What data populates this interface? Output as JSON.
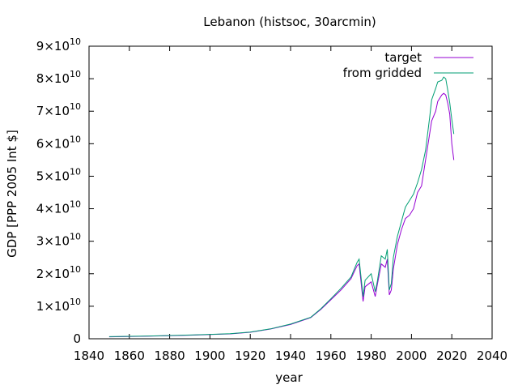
{
  "chart_data": {
    "type": "line",
    "title": "Lebanon (histsoc, 30arcmin)",
    "xlabel": "year",
    "ylabel": "GDP [PPP 2005 Int $]",
    "xlim": [
      1840,
      2040
    ],
    "ylim": [
      0,
      90000000000
    ],
    "xticks": [
      1840,
      1860,
      1880,
      1900,
      1920,
      1940,
      1960,
      1980,
      2000,
      2020,
      2040
    ],
    "yticks": [
      {
        "value": 0,
        "mant": "0",
        "exp": ""
      },
      {
        "value": 10000000000,
        "mant": "1×10",
        "exp": "10"
      },
      {
        "value": 20000000000,
        "mant": "2×10",
        "exp": "10"
      },
      {
        "value": 30000000000,
        "mant": "3×10",
        "exp": "10"
      },
      {
        "value": 40000000000,
        "mant": "4×10",
        "exp": "10"
      },
      {
        "value": 50000000000,
        "mant": "5×10",
        "exp": "10"
      },
      {
        "value": 60000000000,
        "mant": "6×10",
        "exp": "10"
      },
      {
        "value": 70000000000,
        "mant": "7×10",
        "exp": "10"
      },
      {
        "value": 80000000000,
        "mant": "8×10",
        "exp": "10"
      },
      {
        "value": 90000000000,
        "mant": "9×10",
        "exp": "10"
      }
    ],
    "legend_position": "top-right",
    "grid": false,
    "series": [
      {
        "name": "target",
        "color": "#9400d3",
        "points": [
          [
            1850,
            600000000
          ],
          [
            1860,
            700000000
          ],
          [
            1870,
            800000000
          ],
          [
            1880,
            950000000
          ],
          [
            1890,
            1100000000
          ],
          [
            1900,
            1300000000
          ],
          [
            1910,
            1500000000
          ],
          [
            1920,
            2000000000
          ],
          [
            1930,
            3000000000
          ],
          [
            1940,
            4400000000
          ],
          [
            1950,
            6500000000
          ],
          [
            1955,
            9000000000
          ],
          [
            1960,
            12000000000
          ],
          [
            1965,
            15000000000
          ],
          [
            1970,
            18500000000
          ],
          [
            1973,
            22500000000
          ],
          [
            1974,
            23000000000
          ],
          [
            1976,
            11500000000
          ],
          [
            1977,
            16000000000
          ],
          [
            1980,
            17500000000
          ],
          [
            1982,
            13000000000
          ],
          [
            1983,
            16500000000
          ],
          [
            1985,
            23000000000
          ],
          [
            1987,
            22000000000
          ],
          [
            1988,
            24500000000
          ],
          [
            1989,
            13500000000
          ],
          [
            1990,
            15000000000
          ],
          [
            1991,
            21500000000
          ],
          [
            1993,
            29000000000
          ],
          [
            1995,
            33500000000
          ],
          [
            1997,
            37000000000
          ],
          [
            1999,
            38000000000
          ],
          [
            2001,
            40000000000
          ],
          [
            2003,
            45000000000
          ],
          [
            2005,
            47000000000
          ],
          [
            2007,
            55000000000
          ],
          [
            2009,
            63000000000
          ],
          [
            2010,
            67000000000
          ],
          [
            2012,
            70000000000
          ],
          [
            2013,
            73000000000
          ],
          [
            2015,
            75000000000
          ],
          [
            2016,
            75500000000
          ],
          [
            2017,
            75000000000
          ],
          [
            2018,
            72500000000
          ],
          [
            2019,
            69000000000
          ],
          [
            2020,
            60000000000
          ],
          [
            2021,
            55000000000
          ]
        ]
      },
      {
        "name": "from gridded",
        "color": "#009e73",
        "points": [
          [
            1850,
            650000000
          ],
          [
            1860,
            750000000
          ],
          [
            1870,
            850000000
          ],
          [
            1880,
            1000000000
          ],
          [
            1890,
            1150000000
          ],
          [
            1900,
            1350000000
          ],
          [
            1910,
            1550000000
          ],
          [
            1920,
            2050000000
          ],
          [
            1930,
            3050000000
          ],
          [
            1940,
            4500000000
          ],
          [
            1950,
            6600000000
          ],
          [
            1955,
            9200000000
          ],
          [
            1960,
            12300000000
          ],
          [
            1965,
            15500000000
          ],
          [
            1970,
            19000000000
          ],
          [
            1973,
            23500000000
          ],
          [
            1974,
            24500000000
          ],
          [
            1976,
            13000000000
          ],
          [
            1977,
            18000000000
          ],
          [
            1980,
            20000000000
          ],
          [
            1982,
            14500000000
          ],
          [
            1983,
            17500000000
          ],
          [
            1985,
            25500000000
          ],
          [
            1987,
            24500000000
          ],
          [
            1988,
            27500000000
          ],
          [
            1989,
            15000000000
          ],
          [
            1990,
            17000000000
          ],
          [
            1991,
            25000000000
          ],
          [
            1993,
            31500000000
          ],
          [
            1995,
            36000000000
          ],
          [
            1997,
            40500000000
          ],
          [
            1999,
            42500000000
          ],
          [
            2001,
            44500000000
          ],
          [
            2003,
            48000000000
          ],
          [
            2005,
            52000000000
          ],
          [
            2007,
            58000000000
          ],
          [
            2009,
            68000000000
          ],
          [
            2010,
            73500000000
          ],
          [
            2012,
            77000000000
          ],
          [
            2013,
            79000000000
          ],
          [
            2015,
            79500000000
          ],
          [
            2016,
            80500000000
          ],
          [
            2017,
            80000000000
          ],
          [
            2018,
            76500000000
          ],
          [
            2019,
            72500000000
          ],
          [
            2020,
            67500000000
          ],
          [
            2021,
            63000000000
          ]
        ]
      }
    ]
  }
}
